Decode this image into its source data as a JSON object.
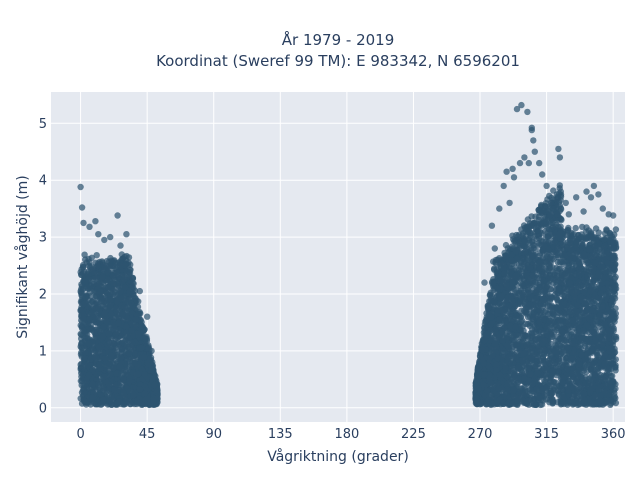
{
  "chart_data": {
    "type": "scatter",
    "title_line1": "År 1979 - 2019",
    "title_line2": "Koordinat (Sweref 99 TM): E 983342, N 6596201",
    "xlabel": "Vågriktning (grader)",
    "ylabel": "Signifikant våghöjd (m)",
    "xlim": [
      -20,
      368
    ],
    "ylim": [
      -0.25,
      5.55
    ],
    "xticks": [
      0,
      45,
      90,
      135,
      180,
      225,
      270,
      315,
      360
    ],
    "yticks": [
      0,
      1,
      2,
      3,
      4,
      5
    ],
    "grid": true,
    "legend": "none",
    "colors": {
      "marker": "#2e5570",
      "plot_bg": "#e5e9f0",
      "grid": "#ffffff",
      "text": "#2a3f5f"
    },
    "series": [
      {
        "clusters": [
          {
            "x_range": [
              0,
              52
            ],
            "y_range": [
              0.05,
              3.0
            ],
            "density": "high"
          },
          {
            "x_range": [
              267,
              362
            ],
            "y_range": [
              0.05,
              4.4
            ],
            "density": "high"
          }
        ],
        "points": [
          [
            0,
            3.88
          ],
          [
            1,
            3.52
          ],
          [
            2,
            3.25
          ],
          [
            6,
            3.18
          ],
          [
            10,
            3.28
          ],
          [
            12,
            3.05
          ],
          [
            16,
            2.95
          ],
          [
            20,
            3.0
          ],
          [
            25,
            3.38
          ],
          [
            27,
            2.85
          ],
          [
            31,
            3.05
          ],
          [
            40,
            2.05
          ],
          [
            45,
            1.6
          ],
          [
            48,
            1.0
          ],
          [
            50,
            0.4
          ],
          [
            273,
            2.2
          ],
          [
            278,
            3.2
          ],
          [
            280,
            2.8
          ],
          [
            283,
            3.5
          ],
          [
            286,
            3.9
          ],
          [
            288,
            4.15
          ],
          [
            290,
            3.6
          ],
          [
            292,
            4.2
          ],
          [
            293,
            4.05
          ],
          [
            295,
            5.25
          ],
          [
            297,
            4.3
          ],
          [
            298,
            5.32
          ],
          [
            300,
            4.4
          ],
          [
            302,
            5.2
          ],
          [
            303,
            4.3
          ],
          [
            305,
            4.92
          ],
          [
            305,
            4.88
          ],
          [
            306,
            4.7
          ],
          [
            307,
            4.5
          ],
          [
            310,
            4.3
          ],
          [
            312,
            4.1
          ],
          [
            315,
            3.9
          ],
          [
            318,
            3.6
          ],
          [
            320,
            3.5
          ],
          [
            322,
            3.75
          ],
          [
            323,
            4.55
          ],
          [
            324,
            4.4
          ],
          [
            325,
            3.3
          ],
          [
            328,
            3.6
          ],
          [
            330,
            3.4
          ],
          [
            335,
            3.7
          ],
          [
            340,
            3.45
          ],
          [
            342,
            3.8
          ],
          [
            345,
            3.7
          ],
          [
            347,
            3.9
          ],
          [
            350,
            3.75
          ],
          [
            353,
            3.5
          ],
          [
            357,
            3.4
          ],
          [
            360,
            3.38
          ],
          [
            360,
            2.9
          ]
        ]
      }
    ]
  }
}
